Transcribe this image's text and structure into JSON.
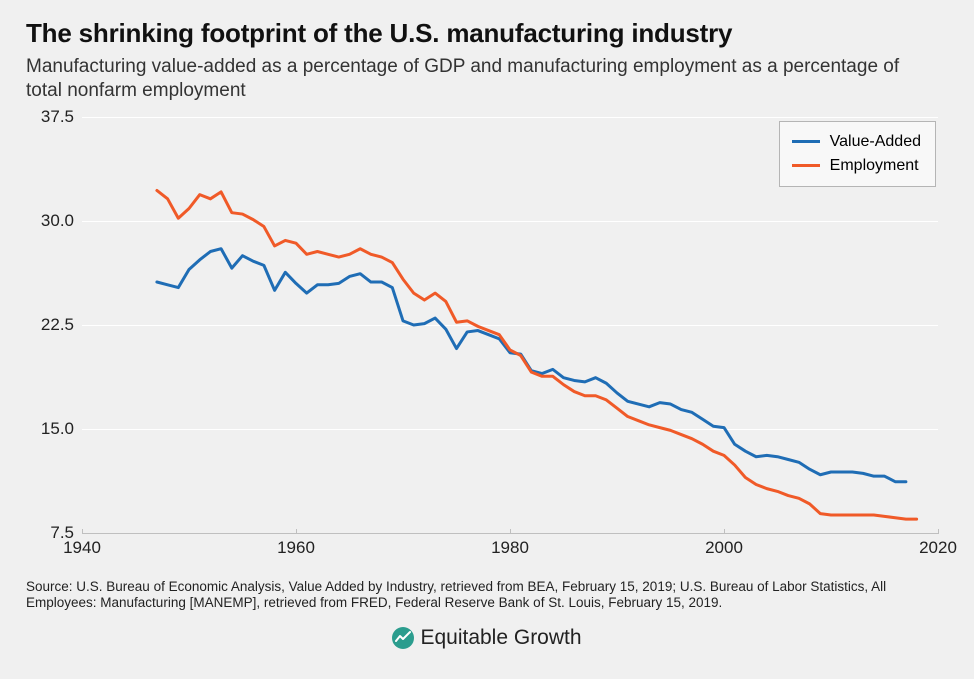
{
  "title": "The shrinking footprint of the U.S. manufacturing industry",
  "subtitle": "Manufacturing value-added as a percentage of GDP and manufacturing employment as a percentage of total nonfarm employment",
  "source": "Source: U.S. Bureau of Economic Analysis, Value Added by Industry, retrieved from BEA, February 15, 2019; U.S. Bureau of Labor Statistics, All Employees: Manufacturing [MANEMP], retrieved from FRED, Federal Reserve Bank of St. Louis, February 15, 2019.",
  "footer_brand": "Equitable Growth",
  "chart": {
    "type": "line",
    "background_color": "#f0f0f0",
    "grid_color": "#ffffff",
    "axis_color": "#bfbfbf",
    "axis_label_color": "#222222",
    "title_fontsize": 26,
    "subtitle_fontsize": 19,
    "axis_fontsize": 17,
    "source_fontsize": 13.5,
    "line_width": 3,
    "xlim": [
      1940,
      2020
    ],
    "xticks": [
      1940,
      1960,
      1980,
      2000,
      2020
    ],
    "ylim": [
      7.5,
      37.5
    ],
    "yticks": [
      7.5,
      15.0,
      22.5,
      30.0,
      37.5
    ],
    "ytick_labels": [
      "7.5",
      "15.0",
      "22.5",
      "30.0",
      "37.5"
    ],
    "legend": {
      "position": "top-right",
      "border_color": "#b5b5b5",
      "background_color": "#f8f8f8",
      "fontsize": 16
    },
    "series": [
      {
        "name": "Value-Added",
        "color": "#1f6db5",
        "data": [
          [
            1947,
            25.6
          ],
          [
            1948,
            25.4
          ],
          [
            1949,
            25.2
          ],
          [
            1950,
            26.5
          ],
          [
            1951,
            27.2
          ],
          [
            1952,
            27.8
          ],
          [
            1953,
            28.0
          ],
          [
            1954,
            26.6
          ],
          [
            1955,
            27.5
          ],
          [
            1956,
            27.1
          ],
          [
            1957,
            26.8
          ],
          [
            1958,
            25.0
          ],
          [
            1959,
            26.3
          ],
          [
            1960,
            25.5
          ],
          [
            1961,
            24.8
          ],
          [
            1962,
            25.4
          ],
          [
            1963,
            25.4
          ],
          [
            1964,
            25.5
          ],
          [
            1965,
            26.0
          ],
          [
            1966,
            26.2
          ],
          [
            1967,
            25.6
          ],
          [
            1968,
            25.6
          ],
          [
            1969,
            25.2
          ],
          [
            1970,
            22.8
          ],
          [
            1971,
            22.5
          ],
          [
            1972,
            22.6
          ],
          [
            1973,
            23.0
          ],
          [
            1974,
            22.2
          ],
          [
            1975,
            20.8
          ],
          [
            1976,
            22.0
          ],
          [
            1977,
            22.1
          ],
          [
            1978,
            21.8
          ],
          [
            1979,
            21.5
          ],
          [
            1980,
            20.5
          ],
          [
            1981,
            20.4
          ],
          [
            1982,
            19.2
          ],
          [
            1983,
            19.0
          ],
          [
            1984,
            19.3
          ],
          [
            1985,
            18.7
          ],
          [
            1986,
            18.5
          ],
          [
            1987,
            18.4
          ],
          [
            1988,
            18.7
          ],
          [
            1989,
            18.3
          ],
          [
            1990,
            17.6
          ],
          [
            1991,
            17.0
          ],
          [
            1992,
            16.8
          ],
          [
            1993,
            16.6
          ],
          [
            1994,
            16.9
          ],
          [
            1995,
            16.8
          ],
          [
            1996,
            16.4
          ],
          [
            1997,
            16.2
          ],
          [
            1998,
            15.7
          ],
          [
            1999,
            15.2
          ],
          [
            2000,
            15.1
          ],
          [
            2001,
            13.9
          ],
          [
            2002,
            13.4
          ],
          [
            2003,
            13.0
          ],
          [
            2004,
            13.1
          ],
          [
            2005,
            13.0
          ],
          [
            2006,
            12.8
          ],
          [
            2007,
            12.6
          ],
          [
            2008,
            12.1
          ],
          [
            2009,
            11.7
          ],
          [
            2010,
            11.9
          ],
          [
            2011,
            11.9
          ],
          [
            2012,
            11.9
          ],
          [
            2013,
            11.8
          ],
          [
            2014,
            11.6
          ],
          [
            2015,
            11.6
          ],
          [
            2016,
            11.2
          ],
          [
            2017,
            11.2
          ]
        ]
      },
      {
        "name": "Employment",
        "color": "#f05a28",
        "data": [
          [
            1947,
            32.2
          ],
          [
            1948,
            31.6
          ],
          [
            1949,
            30.2
          ],
          [
            1950,
            30.9
          ],
          [
            1951,
            31.9
          ],
          [
            1952,
            31.6
          ],
          [
            1953,
            32.1
          ],
          [
            1954,
            30.6
          ],
          [
            1955,
            30.5
          ],
          [
            1956,
            30.1
          ],
          [
            1957,
            29.6
          ],
          [
            1958,
            28.2
          ],
          [
            1959,
            28.6
          ],
          [
            1960,
            28.4
          ],
          [
            1961,
            27.6
          ],
          [
            1962,
            27.8
          ],
          [
            1963,
            27.6
          ],
          [
            1964,
            27.4
          ],
          [
            1965,
            27.6
          ],
          [
            1966,
            28.0
          ],
          [
            1967,
            27.6
          ],
          [
            1968,
            27.4
          ],
          [
            1969,
            27.0
          ],
          [
            1970,
            25.8
          ],
          [
            1971,
            24.8
          ],
          [
            1972,
            24.3
          ],
          [
            1973,
            24.8
          ],
          [
            1974,
            24.2
          ],
          [
            1975,
            22.7
          ],
          [
            1976,
            22.8
          ],
          [
            1977,
            22.4
          ],
          [
            1978,
            22.1
          ],
          [
            1979,
            21.8
          ],
          [
            1980,
            20.7
          ],
          [
            1981,
            20.3
          ],
          [
            1982,
            19.1
          ],
          [
            1983,
            18.8
          ],
          [
            1984,
            18.8
          ],
          [
            1985,
            18.2
          ],
          [
            1986,
            17.7
          ],
          [
            1987,
            17.4
          ],
          [
            1988,
            17.4
          ],
          [
            1989,
            17.1
          ],
          [
            1990,
            16.5
          ],
          [
            1991,
            15.9
          ],
          [
            1992,
            15.6
          ],
          [
            1993,
            15.3
          ],
          [
            1994,
            15.1
          ],
          [
            1995,
            14.9
          ],
          [
            1996,
            14.6
          ],
          [
            1997,
            14.3
          ],
          [
            1998,
            13.9
          ],
          [
            1999,
            13.4
          ],
          [
            2000,
            13.1
          ],
          [
            2001,
            12.4
          ],
          [
            2002,
            11.5
          ],
          [
            2003,
            11.0
          ],
          [
            2004,
            10.7
          ],
          [
            2005,
            10.5
          ],
          [
            2006,
            10.2
          ],
          [
            2007,
            10.0
          ],
          [
            2008,
            9.6
          ],
          [
            2009,
            8.9
          ],
          [
            2010,
            8.8
          ],
          [
            2011,
            8.8
          ],
          [
            2012,
            8.8
          ],
          [
            2013,
            8.8
          ],
          [
            2014,
            8.8
          ],
          [
            2015,
            8.7
          ],
          [
            2016,
            8.6
          ],
          [
            2017,
            8.5
          ],
          [
            2018,
            8.5
          ]
        ]
      }
    ]
  }
}
